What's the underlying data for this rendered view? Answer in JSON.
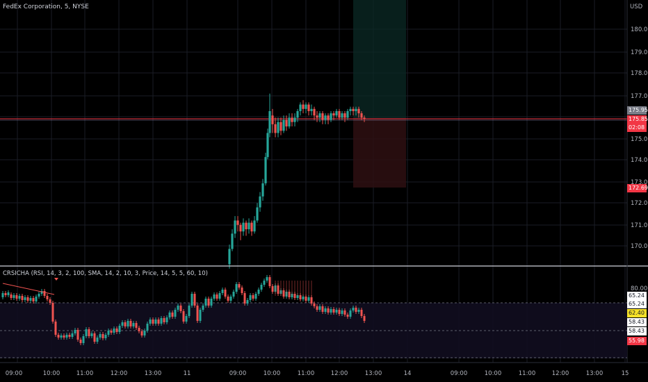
{
  "header": {
    "symbol": "FedEx Corporation, 5, NYSE",
    "currency": "USD"
  },
  "price_axis": {
    "ticks": [
      "180.00",
      "179.00",
      "178.00",
      "177.00",
      "175.00",
      "174.00",
      "173.00",
      "172.00",
      "171.00",
      "170.00"
    ],
    "tags": {
      "current": "175.95",
      "last": "175.85",
      "countdown": "02:08",
      "stop": "172.69"
    }
  },
  "indicator": {
    "title": "CRSICHA (RSI, 14, 3, 2, 100, SMA, 14, 2, 10, 3, Price, 14, 5, 5, 60, 10)",
    "axis_top": "80.00",
    "tags": {
      "a": "65.24",
      "b": "65.24",
      "c": "62.40",
      "d": "58.43",
      "e": "58.43",
      "f": "55.98"
    }
  },
  "time_axis": [
    "09:00",
    "10:00",
    "11:00",
    "12:00",
    "13:00",
    "11",
    "09:00",
    "10:00",
    "11:00",
    "12:00",
    "13:00",
    "14",
    "09:00",
    "10:00",
    "11:00",
    "12:00",
    "13:00",
    "15"
  ],
  "colors": {
    "up": "#26a69a",
    "down": "#ef5350",
    "background": "#000000",
    "grid": "#1a1d26",
    "accent_line": "#f23645",
    "highlight_tag": "#f5e028"
  }
}
